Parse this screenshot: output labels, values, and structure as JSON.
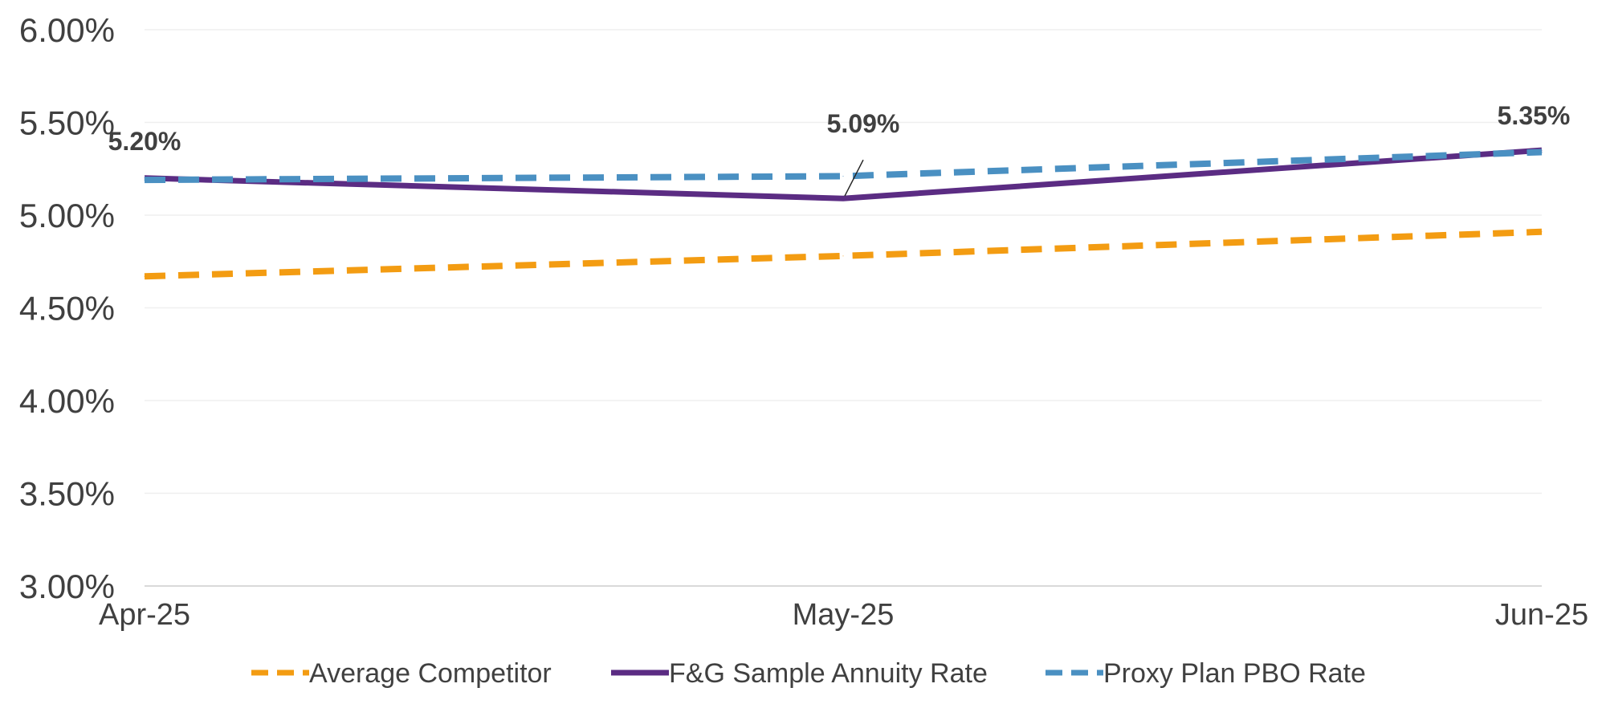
{
  "chart_data": {
    "type": "line",
    "title": "",
    "xlabel": "",
    "ylabel": "",
    "categories": [
      "Apr-25",
      "May-25",
      "Jun-25"
    ],
    "y_ticks": [
      "6.00%",
      "5.50%",
      "5.00%",
      "4.50%",
      "4.00%",
      "3.50%",
      "3.00%"
    ],
    "ylim": [
      3.0,
      6.0
    ],
    "grid": true,
    "legend_position": "bottom",
    "series": [
      {
        "name": "Average Competitor",
        "values": [
          4.67,
          4.78,
          4.91
        ],
        "color": "#F39C12",
        "style": "dashed"
      },
      {
        "name": "F&G Sample Annuity Rate",
        "values": [
          5.2,
          5.09,
          5.35
        ],
        "color": "#5B2C83",
        "style": "solid"
      },
      {
        "name": "Proxy Plan PBO Rate",
        "values": [
          5.19,
          5.21,
          5.34
        ],
        "color": "#4A90C2",
        "style": "dashed"
      }
    ],
    "data_labels": [
      {
        "series": "F&G Sample Annuity Rate",
        "index": 0,
        "text": "5.20%"
      },
      {
        "series": "F&G Sample Annuity Rate",
        "index": 1,
        "text": "5.09%"
      },
      {
        "series": "F&G Sample Annuity Rate",
        "index": 2,
        "text": "5.35%"
      }
    ]
  }
}
